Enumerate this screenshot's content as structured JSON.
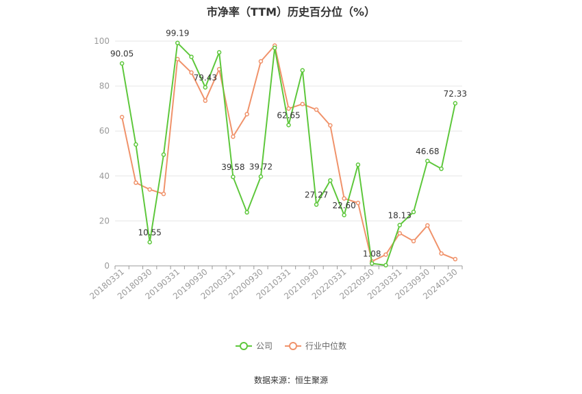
{
  "title": "市净率（TTM）历史百分位（%）",
  "source": "数据来源：恒生聚源",
  "chart_data": {
    "type": "line",
    "ylim": [
      0,
      100
    ],
    "yticks": [
      0,
      20,
      40,
      60,
      80,
      100
    ],
    "x": [
      "20180331",
      "20180630",
      "20180930",
      "20181231",
      "20190331",
      "20190630",
      "20190930",
      "20191231",
      "20200331",
      "20200630",
      "20200930",
      "20201231",
      "20210331",
      "20210630",
      "20210930",
      "20211231",
      "20220331",
      "20220630",
      "20220930",
      "20221231",
      "20230331",
      "20230630",
      "20230930",
      "20231231",
      "20240130"
    ],
    "xtick_labels": [
      "20180331",
      "20180930",
      "20190331",
      "20190930",
      "20200331",
      "20200930",
      "20210331",
      "20210930",
      "20220331",
      "20220930",
      "20230331",
      "20230930",
      "20240130"
    ],
    "grid": true,
    "legend_position": "bottom",
    "series": [
      {
        "name": "公司",
        "color": "#5dc73b",
        "values": [
          90.05,
          54,
          10.55,
          49.5,
          99.19,
          93,
          79.43,
          95,
          39.58,
          23.8,
          39.72,
          97,
          62.65,
          87,
          27.27,
          38,
          22.6,
          45,
          1.08,
          0.3,
          18.13,
          24,
          46.68,
          43.2,
          72.33
        ],
        "labels": {
          "0": "90.05",
          "2": "10.55",
          "4": "99.19",
          "6": "79.43",
          "8": "39.58",
          "10": "39.72",
          "12": "62.65",
          "14": "27.27",
          "16": "22.60",
          "18": "1.08",
          "20": "18.13",
          "22": "46.68",
          "24": "72.33"
        }
      },
      {
        "name": "行业中位数",
        "color": "#f0926a",
        "values": [
          66.2,
          37,
          34,
          32,
          92,
          86,
          73.5,
          87.5,
          57.5,
          67.5,
          91,
          98,
          70,
          72,
          69.5,
          62.5,
          30,
          28,
          2,
          5,
          14.5,
          11,
          18,
          5.5,
          3
        ]
      }
    ]
  }
}
